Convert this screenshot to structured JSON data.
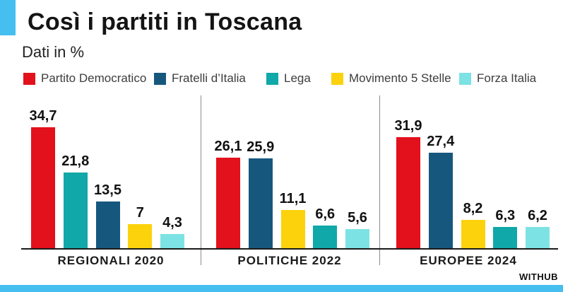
{
  "header": {
    "title": "Così i partiti in Toscana",
    "subtitle": "Dati in %"
  },
  "brand": {
    "credit": "WITHUB",
    "accent_color": "#45BEF0"
  },
  "legend": {
    "position": "top",
    "items": [
      {
        "label": "Partito Democratico",
        "color": "#E2111C"
      },
      {
        "label": "Fratelli d’Italia",
        "color": "#16577E"
      },
      {
        "label": "Lega",
        "color": "#10A8A8"
      },
      {
        "label": "Movimento 5 Stelle",
        "color": "#FCD20C"
      },
      {
        "label": "Forza Italia",
        "color": "#7DE2E4"
      }
    ]
  },
  "chart_data": {
    "type": "bar",
    "title": "Così i partiti in Toscana",
    "unit": "%",
    "ylabel": "",
    "xlabel": "",
    "ylim": [
      0,
      40
    ],
    "grid": false,
    "y_axis_visible": false,
    "legend_position": "top",
    "groups": [
      {
        "label": "REGIONALI 2020",
        "bars": [
          {
            "party": "Partito Democratico",
            "value": 34.7,
            "display": "34,7",
            "color": "#E2111C"
          },
          {
            "party": "Lega",
            "value": 21.8,
            "display": "21,8",
            "color": "#10A8A8"
          },
          {
            "party": "Fratelli d’Italia",
            "value": 13.5,
            "display": "13,5",
            "color": "#16577E"
          },
          {
            "party": "Movimento 5 Stelle",
            "value": 7,
            "display": "7",
            "color": "#FCD20C"
          },
          {
            "party": "Forza Italia",
            "value": 4.3,
            "display": "4,3",
            "color": "#7DE2E4"
          }
        ]
      },
      {
        "label": "POLITICHE 2022",
        "bars": [
          {
            "party": "Partito Democratico",
            "value": 26.1,
            "display": "26,1",
            "color": "#E2111C"
          },
          {
            "party": "Fratelli d’Italia",
            "value": 25.9,
            "display": "25,9",
            "color": "#16577E"
          },
          {
            "party": "Movimento 5 Stelle",
            "value": 11.1,
            "display": "11,1",
            "color": "#FCD20C"
          },
          {
            "party": "Lega",
            "value": 6.6,
            "display": "6,6",
            "color": "#10A8A8"
          },
          {
            "party": "Forza Italia",
            "value": 5.6,
            "display": "5,6",
            "color": "#7DE2E4"
          }
        ]
      },
      {
        "label": "EUROPEE 2024",
        "bars": [
          {
            "party": "Partito Democratico",
            "value": 31.9,
            "display": "31,9",
            "color": "#E2111C"
          },
          {
            "party": "Fratelli d’Italia",
            "value": 27.4,
            "display": "27,4",
            "color": "#16577E"
          },
          {
            "party": "Movimento 5 Stelle",
            "value": 8.2,
            "display": "8,2",
            "color": "#FCD20C"
          },
          {
            "party": "Lega",
            "value": 6.3,
            "display": "6,3",
            "color": "#10A8A8"
          },
          {
            "party": "Forza Italia",
            "value": 6.2,
            "display": "6,2",
            "color": "#7DE2E4"
          }
        ]
      }
    ]
  }
}
